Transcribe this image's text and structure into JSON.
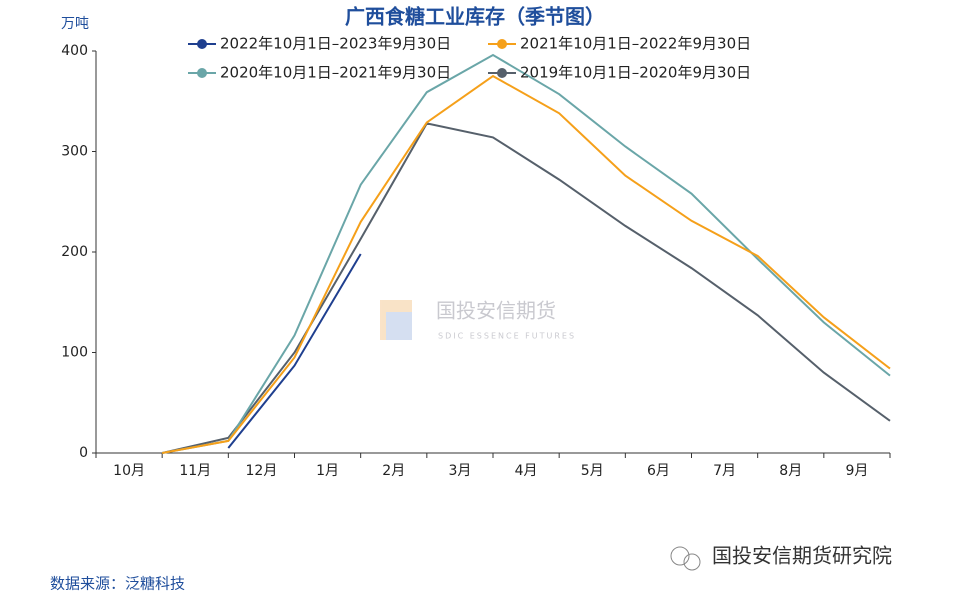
{
  "chart_data": {
    "type": "line",
    "title": "广西食糖工业库存（季节图）",
    "y_label": "万吨",
    "categories": [
      "10月",
      "11月",
      "12月",
      "1月",
      "2月",
      "3月",
      "4月",
      "5月",
      "6月",
      "7月",
      "8月",
      "9月"
    ],
    "series": [
      {
        "name": "2022年10月1日–2023年9月30日",
        "color": "#1f3f8f",
        "values": [
          null,
          5,
          87,
          198,
          null,
          null,
          null,
          null,
          null,
          null,
          null,
          null
        ]
      },
      {
        "name": "2021年10月1日–2022年9月30日",
        "color": "#f5a01a",
        "values": [
          0,
          12,
          95,
          230,
          329,
          375,
          338,
          276,
          231,
          196,
          135,
          84
        ]
      },
      {
        "name": "2020年10月1日–2021年9月30日",
        "color": "#6aa6a8",
        "values": [
          0,
          12,
          117,
          267,
          359,
          396,
          357,
          305,
          258,
          193,
          130,
          77
        ]
      },
      {
        "name": "2019年10月1日–2020年9月30日",
        "color": "#56606b",
        "values": [
          0,
          15,
          100,
          213,
          328,
          314,
          272,
          226,
          184,
          137,
          80,
          32
        ]
      }
    ],
    "ylim": [
      0,
      400
    ],
    "yticks": [
      0,
      100,
      200,
      300,
      400
    ],
    "grid": false,
    "watermark": {
      "title": "国投安信期货",
      "subtitle": "SDIC ESSENCE FUTURES"
    },
    "source": "数据来源：泛糖科技",
    "brand": "国投安信期货研究院"
  }
}
